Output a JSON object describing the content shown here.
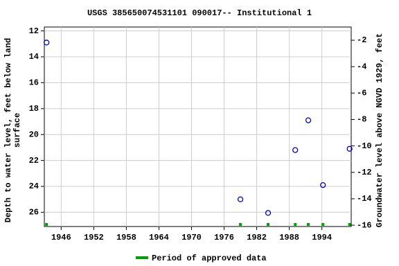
{
  "chart_data": {
    "type": "scatter",
    "title": "USGS 385650074531101 090017-- Institutional 1",
    "ylabel": [
      "Depth to water level, feet below land",
      "surface"
    ],
    "y2label": "Groundwater level above NGVD 1929, feet",
    "xlim": [
      1942.9,
      1999.4
    ],
    "xticks": [
      1946,
      1952,
      1958,
      1964,
      1970,
      1976,
      1982,
      1988,
      1994
    ],
    "ylim": [
      11.7,
      27.1
    ],
    "yticks": [
      12,
      14,
      16,
      18,
      20,
      22,
      24,
      26
    ],
    "y2lim": [
      -1.0,
      -16.1
    ],
    "y2ticks": [
      -2,
      -4,
      -6,
      -8,
      -10,
      -12,
      -14,
      -16
    ],
    "grid": true,
    "series": [
      {
        "name": "Depth to water level",
        "color": "#0000cc",
        "x": [
          1943.3,
          1979.0,
          1984.1,
          1989.1,
          1991.5,
          1994.2,
          1999.1
        ],
        "values": [
          12.9,
          25.0,
          26.05,
          21.2,
          18.9,
          23.9,
          21.1
        ]
      }
    ],
    "approved": {
      "name": "Period of approved data",
      "color": "#00a000",
      "x": [
        1943.3,
        1979.0,
        1984.1,
        1989.1,
        1991.5,
        1994.2,
        1999.1
      ]
    }
  }
}
